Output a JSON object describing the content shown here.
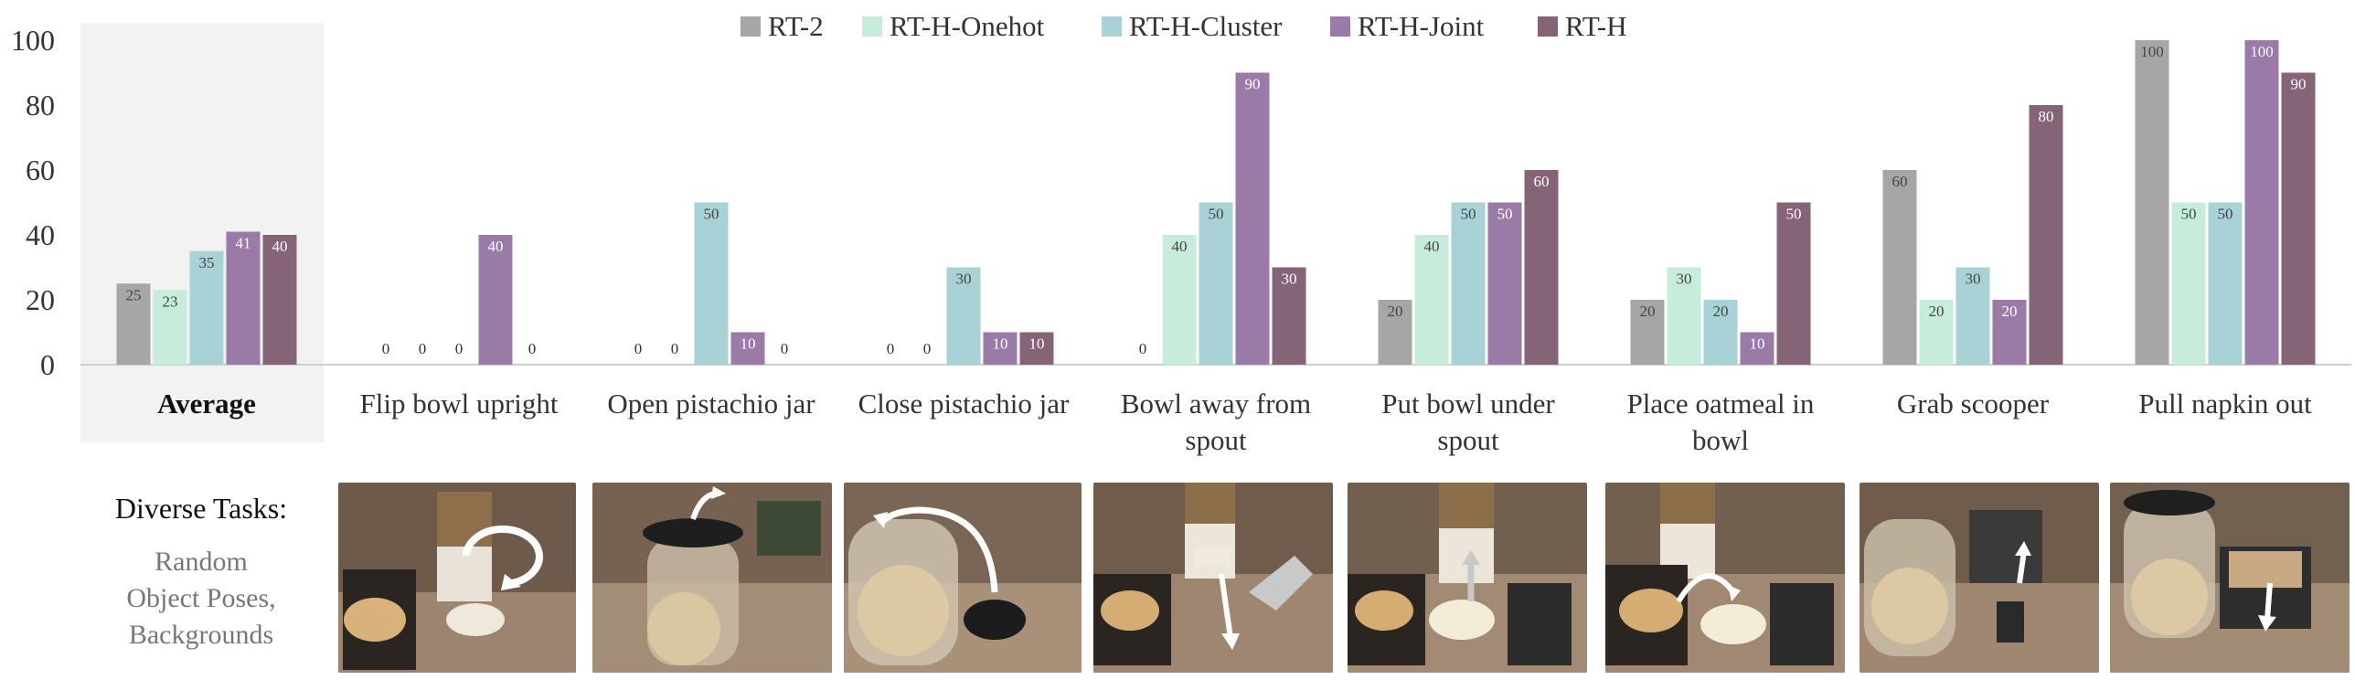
{
  "chart_data": {
    "type": "bar",
    "title": "",
    "xlabel": "",
    "ylabel": "",
    "ylim": [
      0,
      100
    ],
    "yticks": [
      0,
      20,
      40,
      60,
      80,
      100
    ],
    "categories": [
      "Average",
      "Flip bowl upright",
      "Open pistachio jar",
      "Close pistachio jar",
      "Bowl away from spout",
      "Put bowl under spout",
      "Place oatmeal in bowl",
      "Grab scooper",
      "Pull napkin out"
    ],
    "category_lines": [
      [
        "Average"
      ],
      [
        "Flip bowl upright"
      ],
      [
        "Open pistachio jar"
      ],
      [
        "Close pistachio jar"
      ],
      [
        "Bowl away from",
        "spout"
      ],
      [
        "Put bowl under",
        "spout"
      ],
      [
        "Place oatmeal in",
        "bowl"
      ],
      [
        "Grab scooper"
      ],
      [
        "Pull napkin out"
      ]
    ],
    "series": [
      {
        "name": "RT-2",
        "color": "#a6a6a6",
        "values": [
          25,
          0,
          0,
          0,
          0,
          20,
          20,
          60,
          100
        ]
      },
      {
        "name": "RT-H-Onehot",
        "color": "#c8ecdb",
        "values": [
          23,
          0,
          0,
          0,
          40,
          40,
          30,
          20,
          50
        ]
      },
      {
        "name": "RT-H-Cluster",
        "color": "#a8d2d6",
        "values": [
          35,
          0,
          50,
          30,
          50,
          50,
          20,
          30,
          50
        ]
      },
      {
        "name": "RT-H-Joint",
        "color": "#9a7ba8",
        "values": [
          41,
          40,
          10,
          10,
          90,
          50,
          10,
          20,
          100
        ]
      },
      {
        "name": "RT-H",
        "color": "#866478",
        "values": [
          40,
          0,
          0,
          10,
          30,
          60,
          50,
          80,
          90
        ]
      }
    ],
    "legend_position": "top-center",
    "highlight_category": "Average"
  },
  "tasks_panel": {
    "title": "Diverse Tasks:",
    "subtitle": "Random\nObject Poses,\nBackgrounds"
  }
}
